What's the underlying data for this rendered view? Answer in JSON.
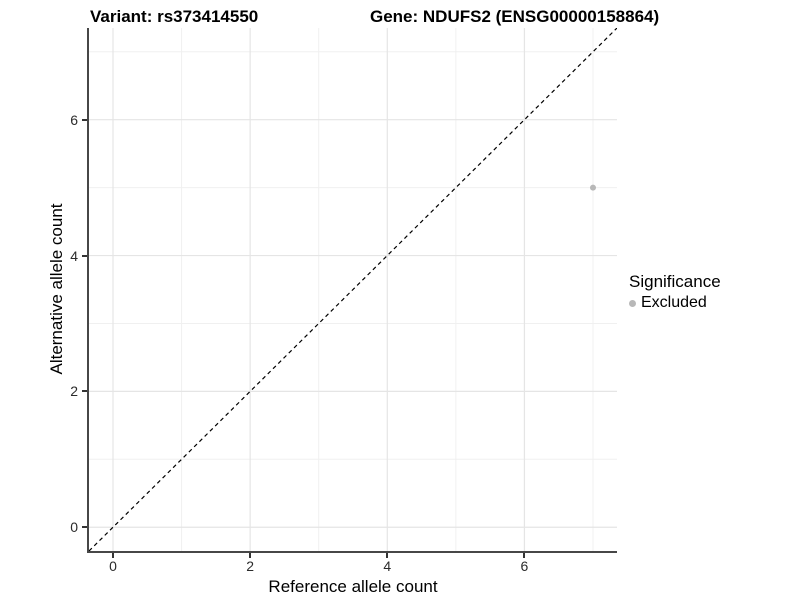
{
  "titles": {
    "variant": "Variant: rs373414550",
    "gene": "Gene: NDUFS2 (ENSG00000158864)"
  },
  "axes": {
    "x_label": "Reference allele count",
    "y_label": "Alternative allele count"
  },
  "legend": {
    "title": "Significance",
    "items": [
      {
        "label": "Excluded",
        "color": "#b8b8b8"
      }
    ]
  },
  "colors": {
    "background": "#ffffff",
    "axis_line": "#474747",
    "major_grid": "#e5e5e5",
    "minor_grid": "#f0f0f0",
    "reference_line": "#000000",
    "point": "#b8b8b8",
    "text": "#000000"
  },
  "chart_data": {
    "type": "scatter",
    "title": "Variant: rs373414550  |  Gene: NDUFS2 (ENSG00000158864)",
    "xlabel": "Reference allele count",
    "ylabel": "Alternative allele count",
    "xlim": [
      -0.35,
      7.35
    ],
    "ylim": [
      -0.35,
      7.35
    ],
    "x_ticks": [
      0,
      2,
      4,
      6
    ],
    "y_ticks": [
      0,
      2,
      4,
      6
    ],
    "x_minor_ticks": [
      1,
      3,
      5,
      7
    ],
    "y_minor_ticks": [
      1,
      3,
      5,
      7
    ],
    "grid": true,
    "legend_position": "right",
    "legend_title": "Significance",
    "series": [
      {
        "name": "Excluded",
        "color": "#b8b8b8",
        "points": [
          {
            "x": 7,
            "y": 5
          }
        ]
      }
    ],
    "reference_line": {
      "type": "identity",
      "slope": 1,
      "intercept": 0,
      "style": "dashed",
      "color": "#000000"
    }
  }
}
